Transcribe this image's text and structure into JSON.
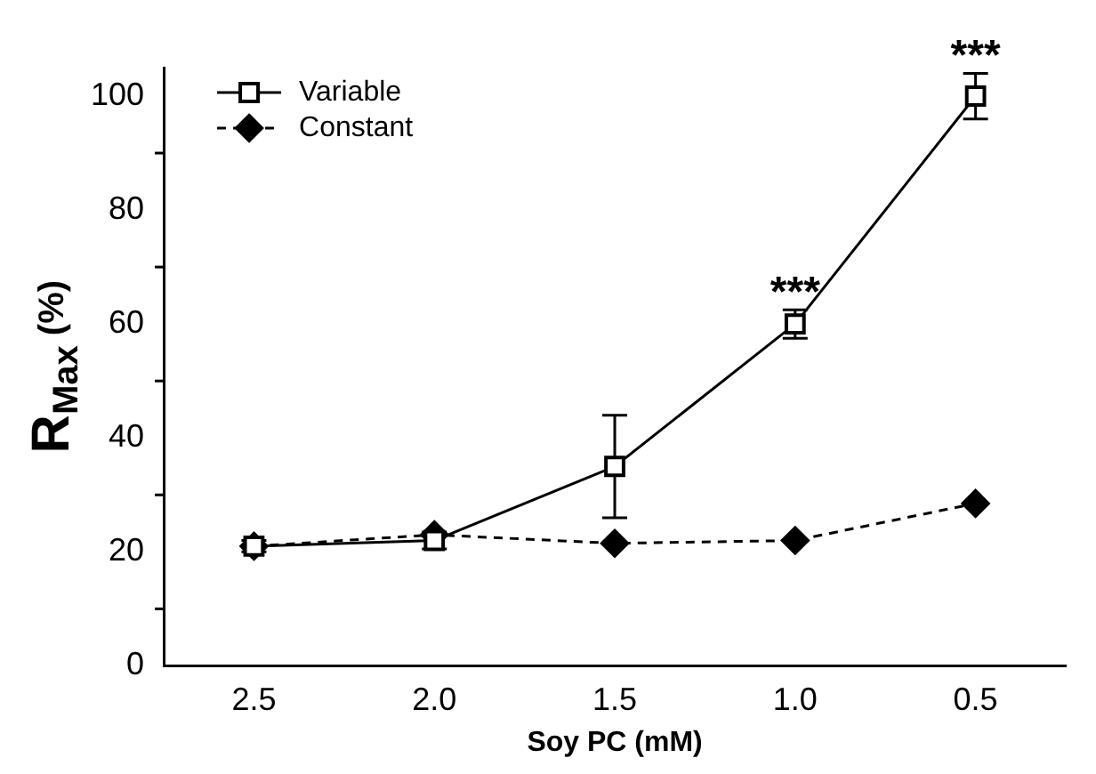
{
  "chart_data": {
    "type": "line",
    "xlabel": "Soy PC (mM)",
    "ylabel": "R$_{Max}$ (%)",
    "categories": [
      "2.5",
      "2.0",
      "1.5",
      "1.0",
      "0.5"
    ],
    "ylim": [
      0,
      105
    ],
    "yticks": [
      0,
      20,
      40,
      60,
      80,
      100
    ],
    "grid": false,
    "legend": "top left",
    "series": [
      {
        "name": "Variable",
        "color": "#000000",
        "marker": "square",
        "line_style": "solid",
        "values": [
          21,
          22,
          35,
          60,
          100
        ],
        "errors": [
          1,
          1.5,
          9,
          2.5,
          4
        ]
      },
      {
        "name": "Constant",
        "color": "#000000",
        "marker": "diamond",
        "line_style": "dashed",
        "values": [
          21,
          23,
          21.5,
          22,
          28.5
        ]
      }
    ],
    "annotations": [
      {
        "text": "***",
        "x": "1.0",
        "y": 60
      },
      {
        "text": "***",
        "x": "0.5",
        "y": 100
      }
    ]
  }
}
